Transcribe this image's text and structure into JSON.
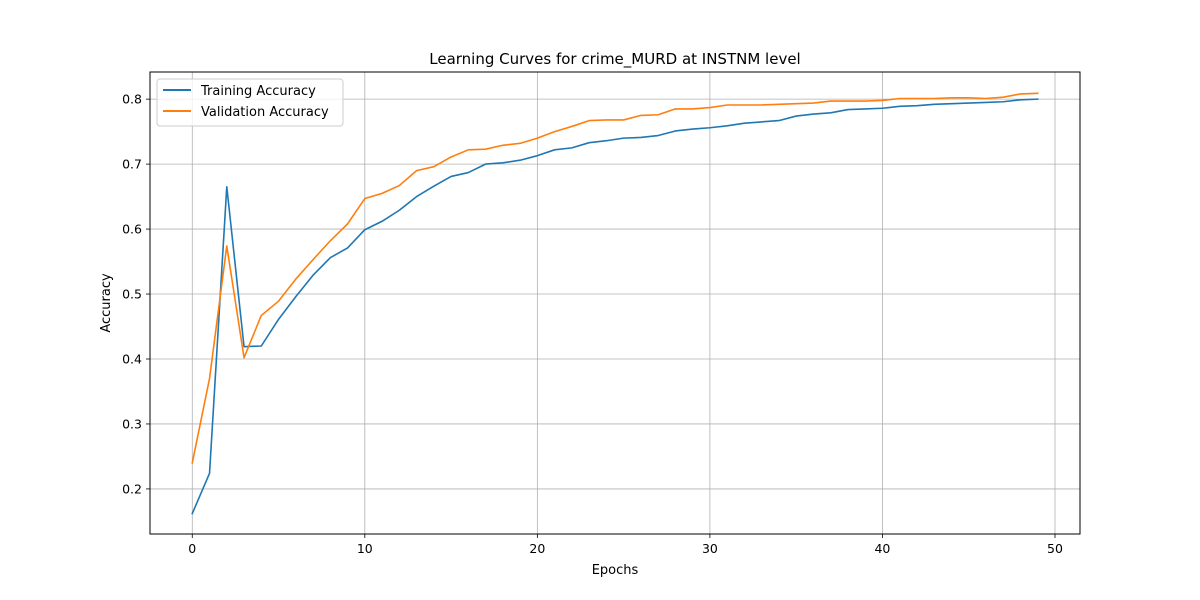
{
  "chart_data": {
    "type": "line",
    "title": "Learning Curves for crime_MURD at INSTNM level",
    "xlabel": "Epochs",
    "ylabel": "Accuracy",
    "xlim": [
      -2.45,
      51.45
    ],
    "ylim": [
      0.1306,
      0.8418
    ],
    "xticks": [
      0,
      10,
      20,
      30,
      40,
      50
    ],
    "yticks": [
      0.2,
      0.3,
      0.4,
      0.5,
      0.6,
      0.7,
      0.8
    ],
    "xtick_labels": [
      "0",
      "10",
      "20",
      "30",
      "40",
      "50"
    ],
    "ytick_labels": [
      "0.2",
      "0.3",
      "0.4",
      "0.5",
      "0.6",
      "0.7",
      "0.8"
    ],
    "grid": true,
    "legend_position": "top-left",
    "x": [
      0,
      1,
      2,
      3,
      4,
      5,
      6,
      7,
      8,
      9,
      10,
      11,
      12,
      13,
      14,
      15,
      16,
      17,
      18,
      19,
      20,
      21,
      22,
      23,
      24,
      25,
      26,
      27,
      28,
      29,
      30,
      31,
      32,
      33,
      34,
      35,
      36,
      37,
      38,
      39,
      40,
      41,
      42,
      43,
      44,
      45,
      46,
      47,
      48,
      49
    ],
    "series": [
      {
        "name": "Training Accuracy",
        "color": "#1f77b4",
        "values": [
          0.162,
          0.224,
          0.665,
          0.419,
          0.42,
          0.461,
          0.496,
          0.529,
          0.556,
          0.571,
          0.599,
          0.612,
          0.629,
          0.65,
          0.666,
          0.681,
          0.687,
          0.7,
          0.702,
          0.706,
          0.713,
          0.722,
          0.725,
          0.733,
          0.736,
          0.74,
          0.741,
          0.744,
          0.751,
          0.754,
          0.756,
          0.759,
          0.763,
          0.765,
          0.767,
          0.774,
          0.777,
          0.779,
          0.784,
          0.785,
          0.786,
          0.789,
          0.79,
          0.792,
          0.793,
          0.794,
          0.795,
          0.796,
          0.799,
          0.8
        ]
      },
      {
        "name": "Validation Accuracy",
        "color": "#ff7f0e",
        "values": [
          0.24,
          0.37,
          0.574,
          0.402,
          0.467,
          0.489,
          0.523,
          0.553,
          0.582,
          0.608,
          0.647,
          0.655,
          0.667,
          0.69,
          0.696,
          0.711,
          0.722,
          0.723,
          0.729,
          0.732,
          0.74,
          0.75,
          0.758,
          0.767,
          0.768,
          0.768,
          0.775,
          0.776,
          0.785,
          0.785,
          0.787,
          0.791,
          0.791,
          0.791,
          0.792,
          0.793,
          0.794,
          0.797,
          0.797,
          0.797,
          0.798,
          0.801,
          0.801,
          0.801,
          0.802,
          0.802,
          0.801,
          0.803,
          0.808,
          0.809
        ]
      }
    ]
  }
}
